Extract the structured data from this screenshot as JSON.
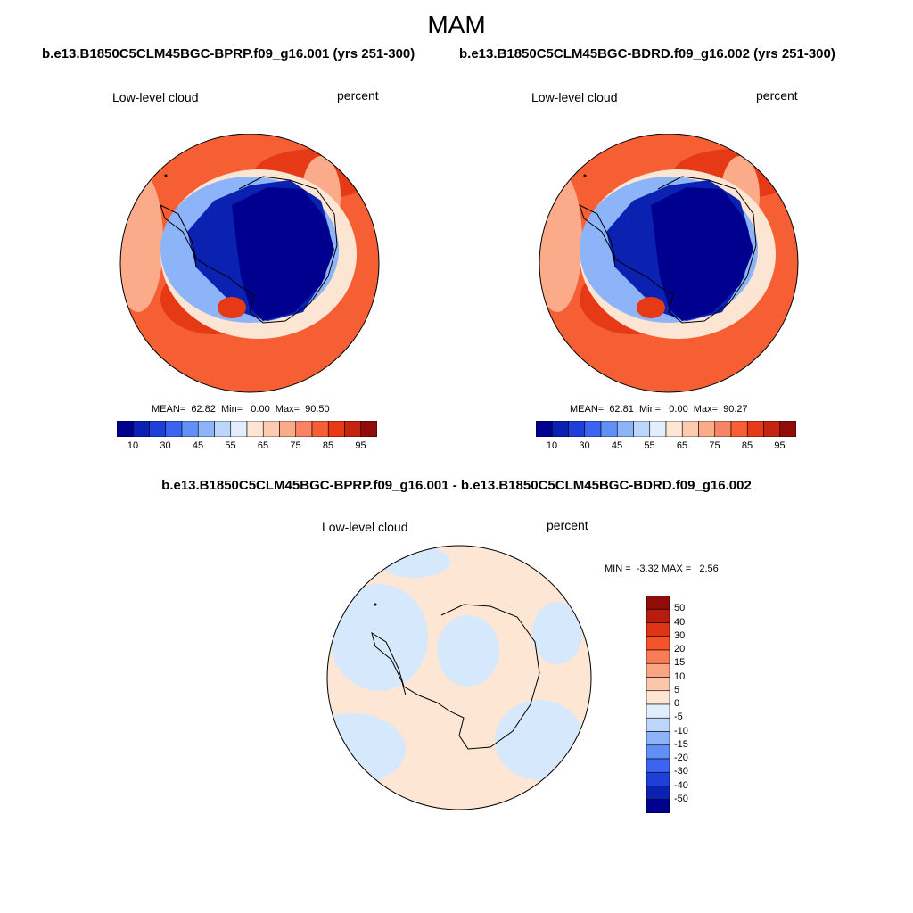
{
  "figure": {
    "title": "MAM",
    "left_case": "b.e13.B1850C5CLM45BGC-BPRP.f09_g16.001 (yrs 251-300)",
    "right_case": "b.e13.B1850C5CLM45BGC-BDRD.f09_g16.002 (yrs 251-300)",
    "diff_title": "b.e13.B1850C5CLM45BGC-BPRP.f09_g16.001 - b.e13.B1850C5CLM45BGC-BDRD.f09_g16.002"
  },
  "panels": {
    "left": {
      "variable": "Low-level cloud",
      "units": "percent",
      "stats": "MEAN=  62.82  Min=   0.00  Max=  90.50",
      "mean": 62.82,
      "min": 0.0,
      "max": 90.5
    },
    "right": {
      "variable": "Low-level cloud",
      "units": "percent",
      "stats": "MEAN=  62.81  Min=   0.00  Max=  90.27",
      "mean": 62.81,
      "min": 0.0,
      "max": 90.27
    },
    "diff": {
      "variable": "Low-level cloud",
      "units": "percent",
      "stats": "MIN =  -3.32 MAX =   2.56",
      "min": -3.32,
      "max": 2.56
    }
  },
  "colorbar_main": {
    "colors": [
      "#00008f",
      "#0a21b2",
      "#1e3fd8",
      "#3b65f0",
      "#6090f5",
      "#8db4f8",
      "#bcd5fa",
      "#e2eefc",
      "#fde5d3",
      "#fccbb0",
      "#fbab8a",
      "#f98463",
      "#f65e33",
      "#e63a17",
      "#c52410",
      "#8f0c08"
    ],
    "labels": [
      "10",
      "30",
      "45",
      "55",
      "65",
      "75",
      "85",
      "95"
    ]
  },
  "colorbar_diff": {
    "colors": [
      "#8f0c08",
      "#b71d0e",
      "#dc3414",
      "#f55428",
      "#f87d56",
      "#fba585",
      "#fcc6aa",
      "#fde6d3",
      "#e2eefc",
      "#bcd5fa",
      "#8db4f8",
      "#6090f5",
      "#3b65f0",
      "#1e3fd8",
      "#0a21b2",
      "#00008f"
    ],
    "labels": [
      "50",
      "40",
      "30",
      "20",
      "15",
      "10",
      "5",
      "0",
      "-5",
      "-10",
      "-15",
      "-20",
      "-30",
      "-40",
      "-50"
    ]
  },
  "colors": {
    "ocean_main": "#f65e33",
    "ocean_band": "#e63a17",
    "ocean_light": "#fbab8a",
    "coast_ring": "#fde5d3",
    "land_blue": "#0a21b2",
    "land_deep": "#00008f",
    "land_mid": "#3b65f0",
    "land_light": "#8db4f8",
    "diff_pos": "#fde6d3",
    "diff_neg": "#d6e8fb",
    "coast_line": "#000000"
  }
}
